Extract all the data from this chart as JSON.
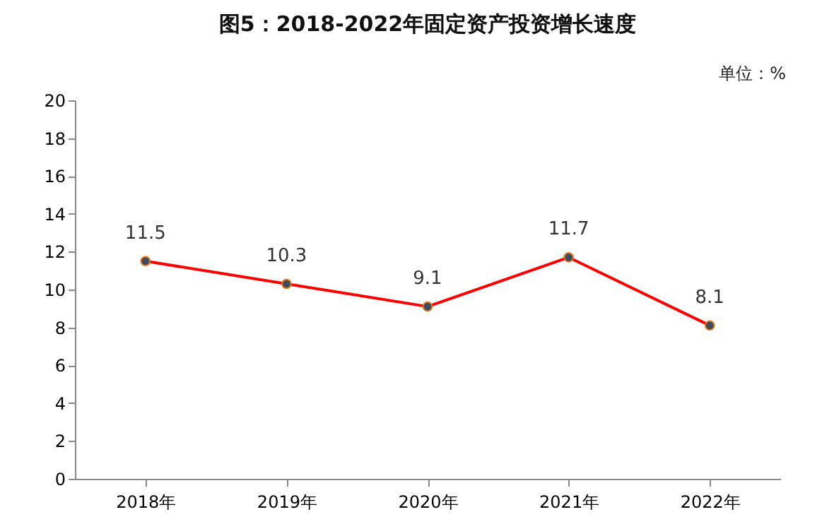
{
  "chart_data": {
    "type": "line",
    "title": "图5：2018-2022年固定资产投资增长速度",
    "annotations": [
      "单位：%"
    ],
    "categories": [
      "2018年",
      "2019年",
      "2020年",
      "2021年",
      "2022年"
    ],
    "series": [
      {
        "color": "#ff0000",
        "values": [
          11.5,
          10.3,
          9.1,
          11.7,
          8.1
        ]
      }
    ],
    "ylim": [
      0,
      20
    ],
    "yticks": [
      0,
      2,
      4,
      6,
      8,
      10,
      12,
      14,
      16,
      18,
      20
    ],
    "grid": false,
    "legend": false,
    "marker": "circle",
    "data_labels": true
  }
}
